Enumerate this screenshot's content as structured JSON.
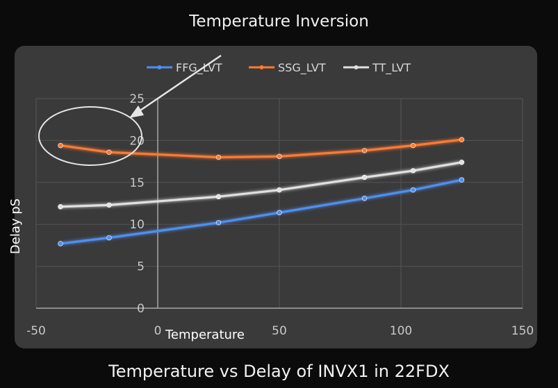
{
  "page": {
    "title": "Temperature Inversion",
    "caption": "Temperature vs Delay of INVX1 in 22FDX"
  },
  "chart_data": {
    "type": "line",
    "title": "Temperature Inversion",
    "xlabel": "Temperature",
    "ylabel": "Delay pS",
    "xlim": [
      -50,
      150
    ],
    "ylim": [
      0,
      25
    ],
    "xticks": [
      -50,
      0,
      50,
      100,
      150
    ],
    "yticks": [
      0,
      5,
      10,
      15,
      20,
      25
    ],
    "grid": true,
    "legend_position": "top",
    "x": [
      -40,
      -20,
      25,
      50,
      85,
      105,
      125
    ],
    "series": [
      {
        "name": "FFG_LVT",
        "color": "#4f8ff0",
        "values": [
          7.7,
          8.4,
          10.2,
          11.4,
          13.1,
          14.1,
          15.3
        ]
      },
      {
        "name": "SSG_LVT",
        "color": "#ff7a30",
        "values": [
          19.4,
          18.6,
          18.0,
          18.1,
          18.8,
          19.4,
          20.1
        ]
      },
      {
        "name": "TT_LVT",
        "color": "#e0e0e0",
        "values": [
          12.1,
          12.3,
          13.3,
          14.1,
          15.6,
          16.4,
          17.4
        ]
      }
    ],
    "annotation": {
      "type": "ellipse-with-arrow",
      "target": "low temperature region"
    }
  }
}
